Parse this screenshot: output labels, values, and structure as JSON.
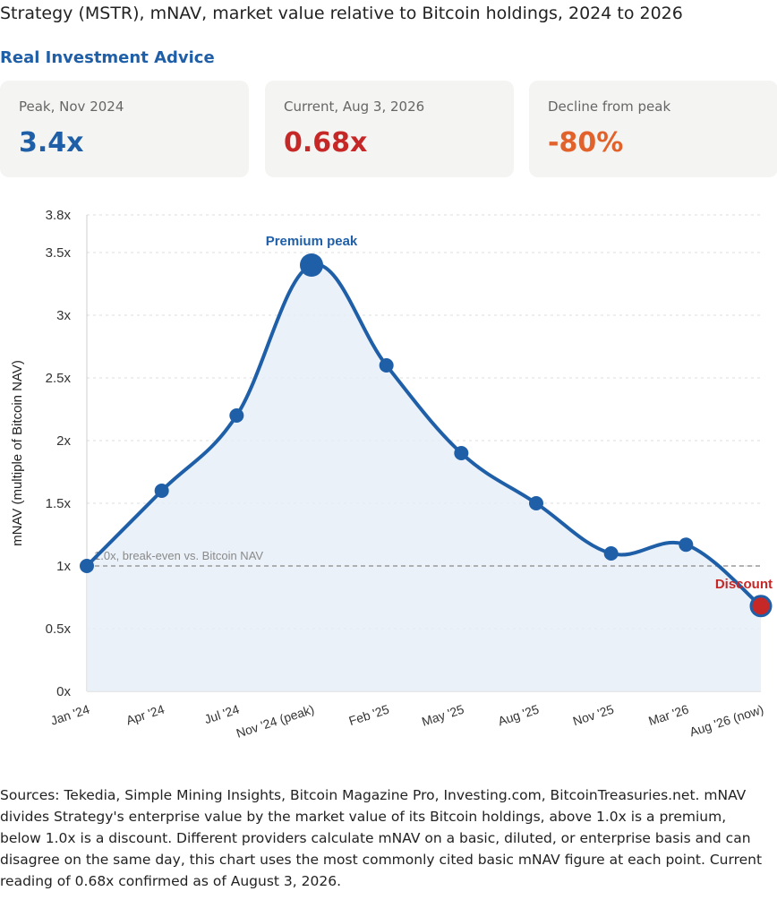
{
  "header": {
    "title": "Strategy (MSTR), mNAV, market value relative to Bitcoin holdings, 2024 to 2026",
    "source_brand": "Real Investment Advice"
  },
  "kpis": [
    {
      "label": "Peak, Nov 2024",
      "value": "3.4x",
      "color": "#1f5fa8"
    },
    {
      "label": "Current, Aug 3, 2026",
      "value": "0.68x",
      "color": "#c62828"
    },
    {
      "label": "Decline from peak",
      "value": "-80%",
      "color": "#e2622b"
    }
  ],
  "chart_data": {
    "type": "area",
    "title": "",
    "ylabel": "mNAV (multiple of Bitcoin NAV)",
    "xlabel": "",
    "categories": [
      "Jan '24",
      "Apr '24",
      "Jul '24",
      "Nov '24 (peak)",
      "Feb '25",
      "May '25",
      "Aug '25",
      "Nov '25",
      "Mar '26",
      "Aug '26 (now)"
    ],
    "series": [
      {
        "values": [
          1.0,
          1.6,
          2.2,
          3.4,
          2.6,
          1.9,
          1.5,
          1.1,
          1.17,
          0.68
        ]
      }
    ],
    "ylim": [
      0,
      3.8
    ],
    "yticks": [
      {
        "value": 0,
        "label": "0x"
      },
      {
        "value": 0.5,
        "label": "0.5x"
      },
      {
        "value": 1,
        "label": "1x"
      },
      {
        "value": 1.5,
        "label": "1.5x"
      },
      {
        "value": 2,
        "label": "2x"
      },
      {
        "value": 2.5,
        "label": "2.5x"
      },
      {
        "value": 3,
        "label": "3x"
      },
      {
        "value": 3.5,
        "label": "3.5x"
      },
      {
        "value": 3.8,
        "label": "3.8x"
      }
    ],
    "reference_line": {
      "value": 1.0,
      "label": "1.0x, break-even vs. Bitcoin NAV"
    },
    "annotations": [
      {
        "index": 3,
        "label": "Premium peak",
        "color": "#1f5fa8"
      },
      {
        "index": 9,
        "label": "Discount",
        "color": "#c62828"
      }
    ],
    "grid": true,
    "colors": {
      "line": "#1f5fa8",
      "fill": "#e6eef7",
      "grid": "#dddddd",
      "reference": "#999999",
      "discount_point": "#c62828"
    }
  },
  "notes": "Sources: Tekedia, Simple Mining Insights, Bitcoin Magazine Pro, Investing.com, BitcoinTreasuries.net. mNAV divides Strategy's enterprise value by the market value of its Bitcoin holdings, above 1.0x is a premium, below 1.0x is a discount. Different providers calculate mNAV on a basic, diluted, or enterprise basis and can disagree on the same day, this chart uses the most commonly cited basic mNAV figure at each point. Current reading of 0.68x confirmed as of August 3, 2026."
}
